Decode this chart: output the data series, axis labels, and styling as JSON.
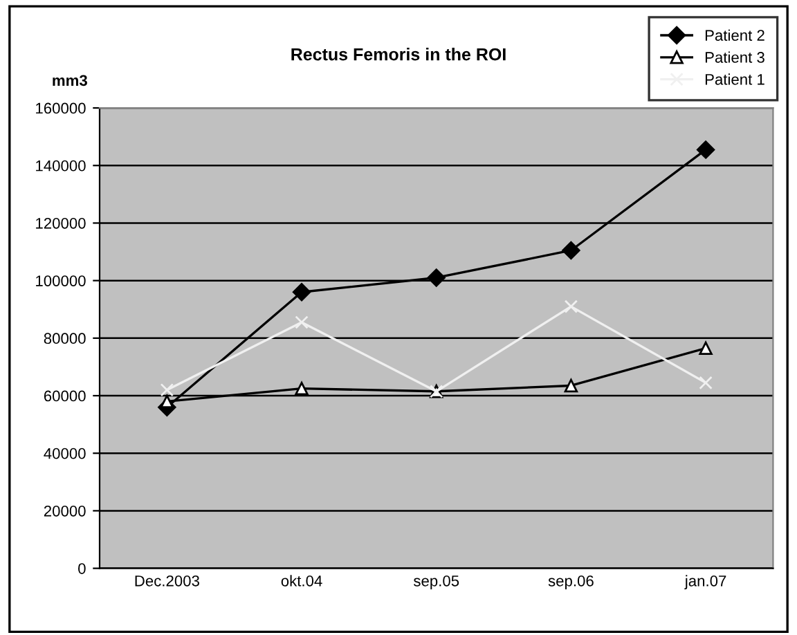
{
  "chart_data": {
    "type": "line",
    "title": "Rectus Femoris in the ROI",
    "ylabel": "mm3",
    "categories": [
      "Dec.2003",
      "okt.04",
      "sep.05",
      "sep.06",
      "jan.07"
    ],
    "series": [
      {
        "name": "Patient 2",
        "color": "#000000",
        "marker": "diamond",
        "values": [
          56000,
          96000,
          101000,
          110500,
          145500
        ]
      },
      {
        "name": "Patient 3",
        "color": "#000000",
        "marker": "triangle",
        "values": [
          58000,
          62500,
          61500,
          63500,
          76500
        ]
      },
      {
        "name": "Patient 1",
        "color": "#f0f0f0",
        "marker": "cross",
        "values": [
          62000,
          85500,
          61500,
          91000,
          64500
        ]
      }
    ],
    "ylim": [
      0,
      160000
    ],
    "yticks": [
      0,
      20000,
      40000,
      60000,
      80000,
      100000,
      120000,
      140000,
      160000
    ],
    "grid": "y",
    "legend": "top right"
  }
}
